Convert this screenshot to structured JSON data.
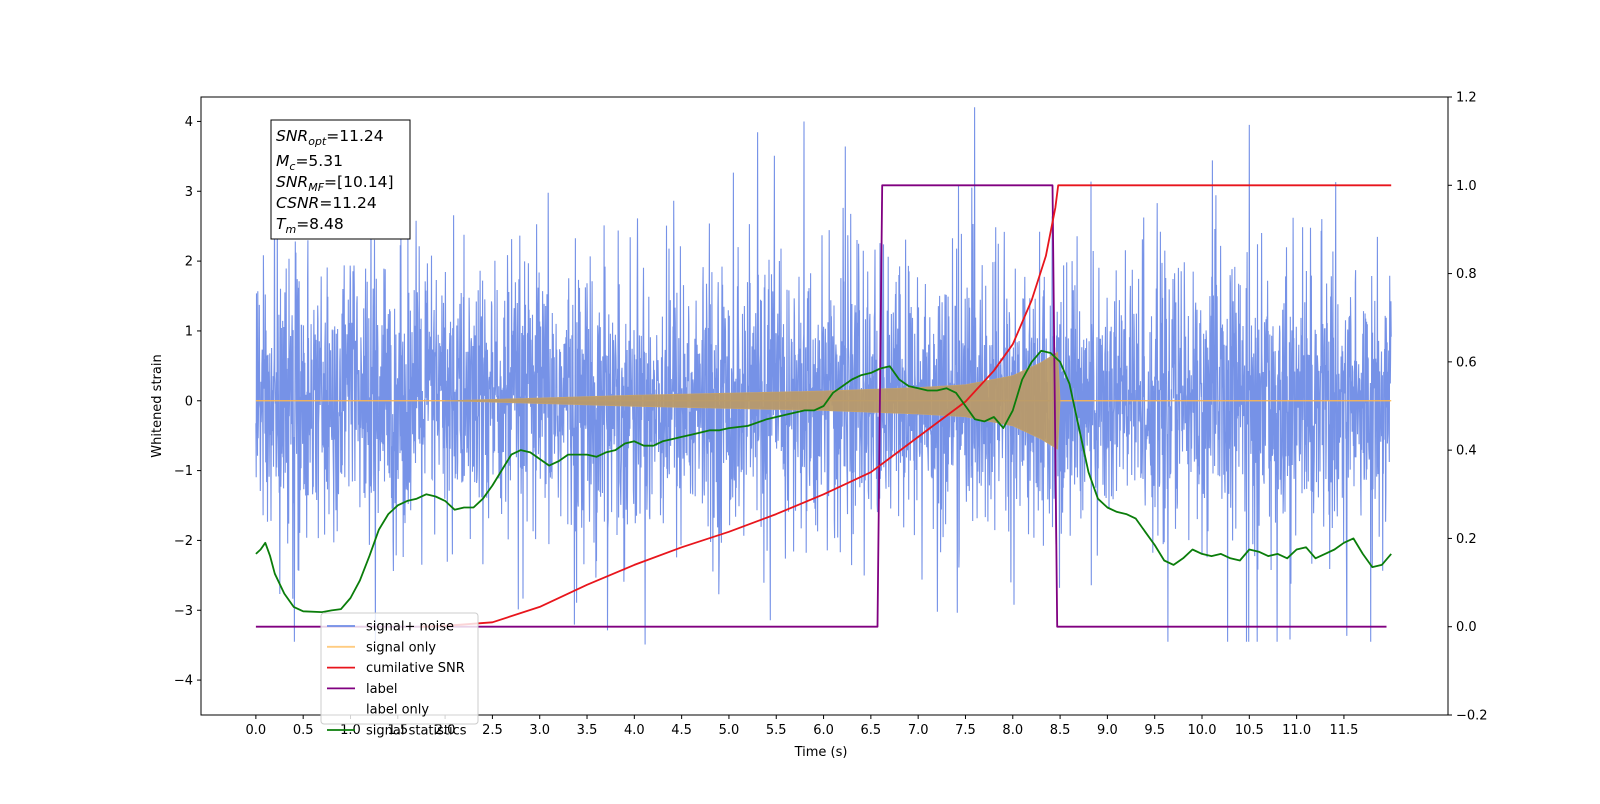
{
  "chart_data": {
    "type": "line",
    "title": "",
    "xlabel": "Time (s)",
    "ylabel": "Whitened strain",
    "y2label": "",
    "xlim": [
      -0.58,
      12.6
    ],
    "ylim": [
      -4.5,
      4.35
    ],
    "y2lim": [
      -0.2,
      1.2
    ],
    "x_ticks": [
      "0.0",
      "0.5",
      "1.0",
      "1.5",
      "2.0",
      "2.5",
      "3.0",
      "3.5",
      "4.0",
      "4.5",
      "5.0",
      "5.5",
      "6.0",
      "6.5",
      "7.0",
      "7.5",
      "8.0",
      "8.5",
      "9.0",
      "9.5",
      "10.0",
      "10.5",
      "11.0",
      "11.5"
    ],
    "y_ticks": [
      "4",
      "3",
      "2",
      "1",
      "0",
      "−1",
      "−2",
      "−3",
      "−4"
    ],
    "y2_ticks": [
      "1.2",
      "1.0",
      "0.8",
      "0.6",
      "0.4",
      "0.2",
      "0.0",
      "−0.2"
    ],
    "grid": false,
    "legend_position": "lower-left",
    "annotation": {
      "snr_opt": {
        "base": "SNR",
        "sub": "opt",
        "value": "=11.24"
      },
      "mc": {
        "base": "M",
        "sub": "c",
        "value": "=5.31"
      },
      "snr_mf": {
        "base": "SNR",
        "sub": "MF",
        "value": "=[10.14]"
      },
      "csnr": {
        "base": "CSNR",
        "sub": "",
        "value": "=11.24"
      },
      "tm": {
        "base": "T",
        "sub": "m",
        "value": "=8.48"
      }
    },
    "series": [
      {
        "name": "signal+ noise",
        "color": "#6f8ce6",
        "axis": "left",
        "x_range": [
          0.0,
          12.0
        ],
        "envelope_description_values": {
          "typical_amplitude": 1.5,
          "peak_max": 3.95,
          "peak_min": -3.45
        }
      },
      {
        "name": "signal only",
        "color": "#ffb74d",
        "axis": "left",
        "x_range": [
          0.0,
          12.0
        ],
        "chirp": {
          "start": 2.0,
          "merger": 8.48,
          "end": 8.5,
          "amplitude_points": [
            [
              2.0,
              0.0
            ],
            [
              3.0,
              0.04
            ],
            [
              4.0,
              0.08
            ],
            [
              5.0,
              0.11
            ],
            [
              6.0,
              0.14
            ],
            [
              7.0,
              0.19
            ],
            [
              7.5,
              0.23
            ],
            [
              8.0,
              0.36
            ],
            [
              8.3,
              0.55
            ],
            [
              8.48,
              0.7
            ],
            [
              8.5,
              0.02
            ]
          ]
        }
      },
      {
        "name": "cumilative SNR",
        "color": "#e8151c",
        "axis": "right",
        "points": [
          [
            1.75,
            0.0
          ],
          [
            2.0,
            0.002
          ],
          [
            2.5,
            0.01
          ],
          [
            3.0,
            0.045
          ],
          [
            3.5,
            0.095
          ],
          [
            4.0,
            0.14
          ],
          [
            4.5,
            0.18
          ],
          [
            5.0,
            0.215
          ],
          [
            5.5,
            0.255
          ],
          [
            6.0,
            0.3
          ],
          [
            6.5,
            0.35
          ],
          [
            7.0,
            0.43
          ],
          [
            7.5,
            0.51
          ],
          [
            7.8,
            0.58
          ],
          [
            8.0,
            0.64
          ],
          [
            8.2,
            0.74
          ],
          [
            8.35,
            0.84
          ],
          [
            8.45,
            0.95
          ],
          [
            8.48,
            1.0
          ],
          [
            12.0,
            1.0
          ]
        ]
      },
      {
        "name": "label",
        "color": "#800080",
        "axis": "right",
        "points": [
          [
            0.0,
            0.0
          ],
          [
            6.57,
            0.0
          ],
          [
            6.62,
            1.0
          ],
          [
            8.42,
            1.0
          ],
          [
            8.47,
            0.0
          ],
          [
            11.95,
            0.0
          ]
        ]
      },
      {
        "name": "label only",
        "color": "#d9d9d9",
        "axis": "right",
        "points": []
      },
      {
        "name": "signal statistics",
        "color": "#0a7d0a",
        "axis": "right",
        "points": [
          [
            0.0,
            0.165
          ],
          [
            0.05,
            0.175
          ],
          [
            0.1,
            0.19
          ],
          [
            0.15,
            0.16
          ],
          [
            0.2,
            0.12
          ],
          [
            0.3,
            0.075
          ],
          [
            0.4,
            0.045
          ],
          [
            0.5,
            0.035
          ],
          [
            0.7,
            0.033
          ],
          [
            0.8,
            0.037
          ],
          [
            0.9,
            0.04
          ],
          [
            1.0,
            0.065
          ],
          [
            1.1,
            0.105
          ],
          [
            1.2,
            0.16
          ],
          [
            1.3,
            0.22
          ],
          [
            1.4,
            0.255
          ],
          [
            1.5,
            0.275
          ],
          [
            1.6,
            0.285
          ],
          [
            1.7,
            0.29
          ],
          [
            1.8,
            0.3
          ],
          [
            1.9,
            0.295
          ],
          [
            2.0,
            0.285
          ],
          [
            2.1,
            0.265
          ],
          [
            2.2,
            0.27
          ],
          [
            2.3,
            0.27
          ],
          [
            2.4,
            0.29
          ],
          [
            2.5,
            0.32
          ],
          [
            2.6,
            0.355
          ],
          [
            2.7,
            0.39
          ],
          [
            2.8,
            0.4
          ],
          [
            2.9,
            0.395
          ],
          [
            3.0,
            0.38
          ],
          [
            3.1,
            0.365
          ],
          [
            3.2,
            0.375
          ],
          [
            3.3,
            0.39
          ],
          [
            3.4,
            0.39
          ],
          [
            3.5,
            0.39
          ],
          [
            3.6,
            0.385
          ],
          [
            3.7,
            0.395
          ],
          [
            3.8,
            0.4
          ],
          [
            3.9,
            0.415
          ],
          [
            4.0,
            0.42
          ],
          [
            4.1,
            0.41
          ],
          [
            4.2,
            0.41
          ],
          [
            4.3,
            0.42
          ],
          [
            4.4,
            0.425
          ],
          [
            4.5,
            0.43
          ],
          [
            4.6,
            0.435
          ],
          [
            4.7,
            0.44
          ],
          [
            4.8,
            0.445
          ],
          [
            4.9,
            0.445
          ],
          [
            5.0,
            0.45
          ],
          [
            5.2,
            0.455
          ],
          [
            5.4,
            0.47
          ],
          [
            5.6,
            0.48
          ],
          [
            5.8,
            0.49
          ],
          [
            5.9,
            0.49
          ],
          [
            6.0,
            0.5
          ],
          [
            6.1,
            0.53
          ],
          [
            6.2,
            0.545
          ],
          [
            6.3,
            0.56
          ],
          [
            6.4,
            0.57
          ],
          [
            6.5,
            0.575
          ],
          [
            6.6,
            0.585
          ],
          [
            6.7,
            0.59
          ],
          [
            6.8,
            0.56
          ],
          [
            6.9,
            0.545
          ],
          [
            7.0,
            0.54
          ],
          [
            7.1,
            0.535
          ],
          [
            7.2,
            0.535
          ],
          [
            7.3,
            0.54
          ],
          [
            7.4,
            0.53
          ],
          [
            7.5,
            0.5
          ],
          [
            7.6,
            0.47
          ],
          [
            7.7,
            0.465
          ],
          [
            7.8,
            0.475
          ],
          [
            7.9,
            0.45
          ],
          [
            8.0,
            0.49
          ],
          [
            8.1,
            0.56
          ],
          [
            8.2,
            0.6
          ],
          [
            8.3,
            0.625
          ],
          [
            8.4,
            0.62
          ],
          [
            8.5,
            0.6
          ],
          [
            8.6,
            0.55
          ],
          [
            8.7,
            0.45
          ],
          [
            8.8,
            0.35
          ],
          [
            8.9,
            0.29
          ],
          [
            9.0,
            0.27
          ],
          [
            9.1,
            0.26
          ],
          [
            9.2,
            0.255
          ],
          [
            9.3,
            0.245
          ],
          [
            9.4,
            0.215
          ],
          [
            9.5,
            0.185
          ],
          [
            9.6,
            0.15
          ],
          [
            9.7,
            0.14
          ],
          [
            9.8,
            0.155
          ],
          [
            9.9,
            0.175
          ],
          [
            10.0,
            0.165
          ],
          [
            10.1,
            0.16
          ],
          [
            10.2,
            0.165
          ],
          [
            10.3,
            0.155
          ],
          [
            10.4,
            0.15
          ],
          [
            10.5,
            0.175
          ],
          [
            10.6,
            0.17
          ],
          [
            10.7,
            0.16
          ],
          [
            10.8,
            0.165
          ],
          [
            10.9,
            0.155
          ],
          [
            11.0,
            0.175
          ],
          [
            11.1,
            0.18
          ],
          [
            11.2,
            0.155
          ],
          [
            11.3,
            0.165
          ],
          [
            11.4,
            0.175
          ],
          [
            11.5,
            0.19
          ],
          [
            11.6,
            0.2
          ],
          [
            11.7,
            0.165
          ],
          [
            11.8,
            0.135
          ],
          [
            11.9,
            0.14
          ],
          [
            12.0,
            0.165
          ]
        ]
      }
    ]
  }
}
